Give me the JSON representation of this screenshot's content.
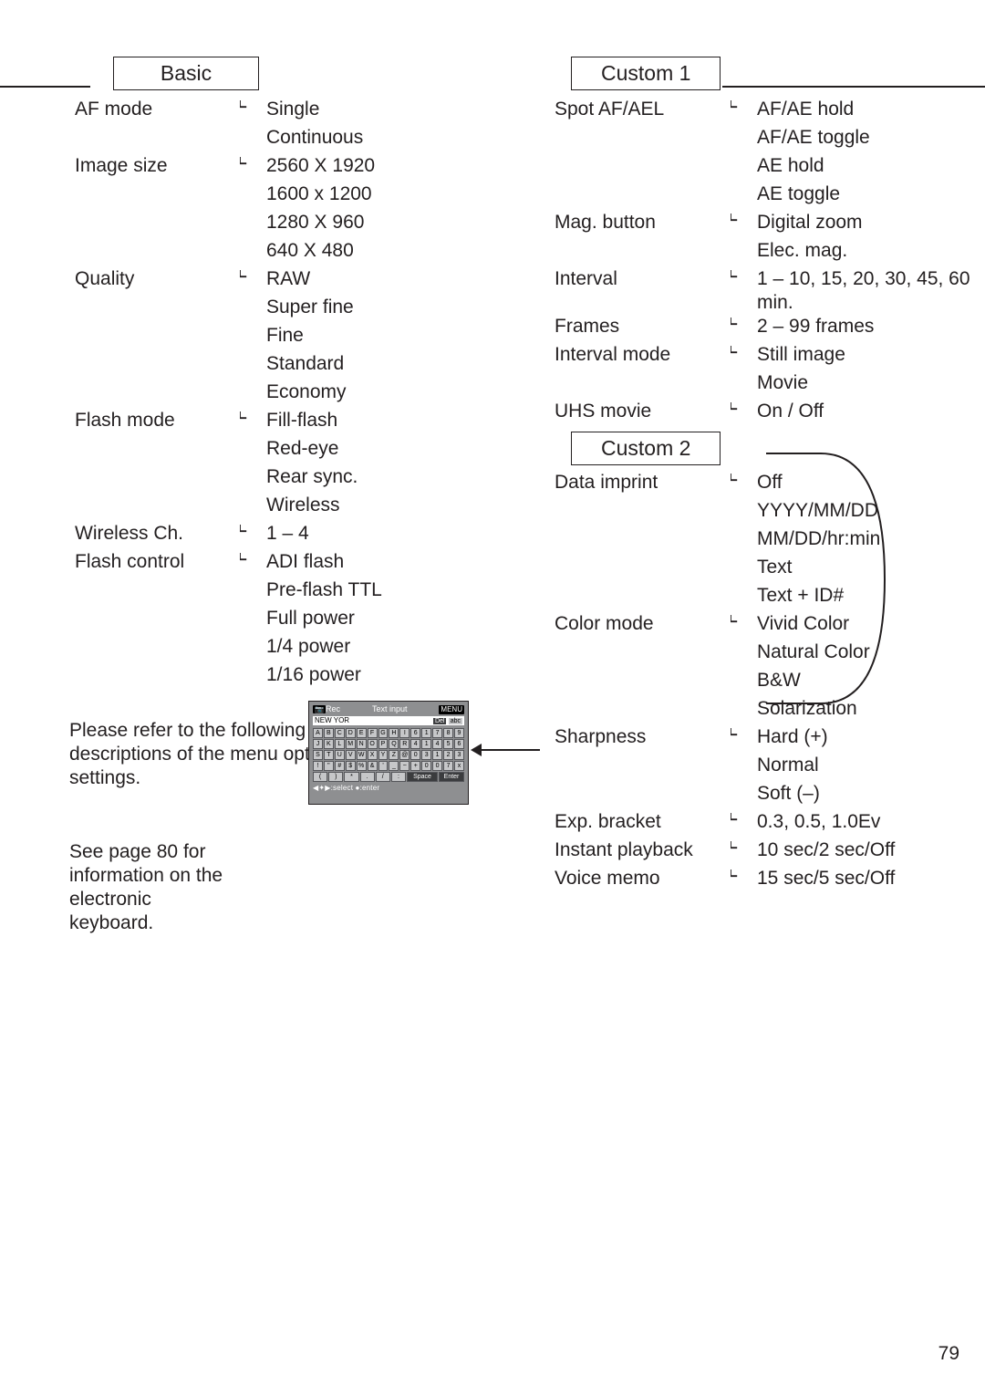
{
  "page_number": "79",
  "note_text": "Please refer to the following sections for descriptions of the menu options and their settings.",
  "keyboard_note": "See page 80 for information on the electronic keyboard.",
  "keyboard": {
    "title_left": "Rec",
    "title_center": "Text input",
    "title_right": "MENU",
    "field_value": "NEW YOR",
    "field_btn1": "Del",
    "field_btn2": "abc",
    "rows": [
      [
        "A",
        "B",
        "C",
        "D",
        "E",
        "F",
        "G",
        "H",
        "I",
        "6",
        "1",
        "7",
        "8",
        "9"
      ],
      [
        "J",
        "K",
        "L",
        "M",
        "N",
        "O",
        "P",
        "Q",
        "R",
        "4",
        "1",
        "4",
        "5",
        "6"
      ],
      [
        "S",
        "T",
        "U",
        "V",
        "W",
        "X",
        "Y",
        "Z",
        "@",
        "0",
        "3",
        "1",
        "2",
        "3"
      ],
      [
        "!",
        "\"",
        "#",
        "$",
        "%",
        "&",
        "'",
        "_",
        "~",
        "+",
        "0",
        "0",
        "7",
        "x"
      ],
      [
        "(",
        ")",
        "*",
        ".",
        "/",
        ":",
        "Space",
        "",
        "",
        "",
        "",
        "",
        "Enter",
        ""
      ]
    ],
    "footer": "◀✦▶:select ●:enter"
  },
  "left": {
    "header": "Basic",
    "items": [
      {
        "label": "AF mode",
        "options": [
          "Single",
          "Continuous"
        ]
      },
      {
        "label": "Image size",
        "options": [
          "2560 X 1920",
          "1600 x 1200",
          "1280 X 960",
          "640 X 480"
        ]
      },
      {
        "label": "Quality",
        "options": [
          "RAW",
          "Super fine",
          "Fine",
          "Standard",
          "Economy"
        ]
      },
      {
        "label": "Flash mode",
        "options": [
          "Fill-flash",
          "Red-eye",
          "Rear sync.",
          "Wireless"
        ]
      },
      {
        "label": "Wireless Ch.",
        "options": [
          "1 – 4"
        ]
      },
      {
        "label": "Flash control",
        "options": [
          "ADI flash",
          "Pre-flash TTL",
          "Full power",
          "1/4 power",
          "1/16 power"
        ]
      }
    ]
  },
  "right": [
    {
      "header": "Custom 1",
      "items": [
        {
          "label": "Spot AF/AEL",
          "options": [
            "AF/AE hold",
            "AF/AE toggle",
            "AE hold",
            "AE toggle"
          ]
        },
        {
          "label": "Mag. button",
          "options": [
            "Digital zoom",
            "Elec. mag."
          ]
        },
        {
          "label": "Interval",
          "options": [
            "1 – 10, 15, 20, 30, 45, 60 min."
          ]
        },
        {
          "label": "Frames",
          "options": [
            "2 – 99 frames"
          ]
        },
        {
          "label": "Interval mode",
          "options": [
            "Still image",
            "Movie"
          ]
        },
        {
          "label": "UHS movie",
          "options": [
            "On / Off"
          ]
        }
      ]
    },
    {
      "header": "Custom 2",
      "items": [
        {
          "label": "Data imprint",
          "options": [
            "Off",
            "YYYY/MM/DD",
            "MM/DD/hr:min",
            "Text",
            "Text + ID#"
          ]
        },
        {
          "label": "Color mode",
          "options": [
            "Vivid Color",
            "Natural Color",
            "B&W",
            "Solarization"
          ]
        },
        {
          "label": "Sharpness",
          "options": [
            "Hard (+)",
            "Normal",
            "Soft (–)"
          ]
        },
        {
          "label": "Exp. bracket",
          "options": [
            "0.3, 0.5, 1.0Ev"
          ]
        },
        {
          "label": "Instant playback",
          "options": [
            "10 sec/2 sec/Off"
          ]
        },
        {
          "label": "Voice memo",
          "options": [
            "15 sec/5 sec/Off"
          ]
        }
      ]
    }
  ],
  "style": {
    "font_size_body": 21,
    "font_size_header": 23,
    "text_color": "#231f20",
    "border_color": "#231f20",
    "kb_bg": "#8e8f91",
    "kb_key_bg": "#c6c7c9"
  }
}
